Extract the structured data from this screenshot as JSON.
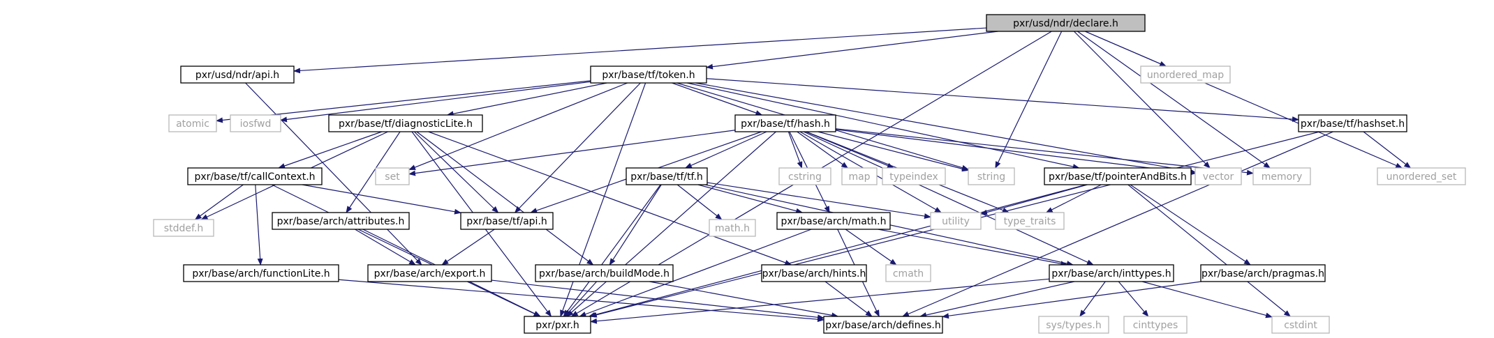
{
  "diagram": {
    "title": "pxr/usd/ndr/declare.h",
    "edge_color": "#191970",
    "root_fill": "#bfbfbf",
    "external_border": "#b8b8b8",
    "nodes": [
      {
        "id": "declare",
        "label": "pxr/usd/ndr/declare.h",
        "kind": "root"
      },
      {
        "id": "ndr_api",
        "label": "pxr/usd/ndr/api.h",
        "kind": "header"
      },
      {
        "id": "token",
        "label": "pxr/base/tf/token.h",
        "kind": "header"
      },
      {
        "id": "unordered_map",
        "label": "unordered_map",
        "kind": "system"
      },
      {
        "id": "atomic",
        "label": "atomic",
        "kind": "system"
      },
      {
        "id": "iosfwd",
        "label": "iosfwd",
        "kind": "system"
      },
      {
        "id": "diagLite",
        "label": "pxr/base/tf/diagnosticLite.h",
        "kind": "header"
      },
      {
        "id": "hash",
        "label": "pxr/base/tf/hash.h",
        "kind": "header"
      },
      {
        "id": "hashset",
        "label": "pxr/base/tf/hashset.h",
        "kind": "header"
      },
      {
        "id": "set",
        "label": "set",
        "kind": "system"
      },
      {
        "id": "callContext",
        "label": "pxr/base/tf/callContext.h",
        "kind": "header"
      },
      {
        "id": "tf_tf",
        "label": "pxr/base/tf/tf.h",
        "kind": "header"
      },
      {
        "id": "cstring",
        "label": "cstring",
        "kind": "system"
      },
      {
        "id": "map",
        "label": "map",
        "kind": "system"
      },
      {
        "id": "typeindex",
        "label": "typeindex",
        "kind": "system"
      },
      {
        "id": "string",
        "label": "string",
        "kind": "system"
      },
      {
        "id": "pab",
        "label": "pxr/base/tf/pointerAndBits.h",
        "kind": "header"
      },
      {
        "id": "vector",
        "label": "vector",
        "kind": "system"
      },
      {
        "id": "memory",
        "label": "memory",
        "kind": "system"
      },
      {
        "id": "unordered_set",
        "label": "unordered_set",
        "kind": "system"
      },
      {
        "id": "stddef",
        "label": "stddef.h",
        "kind": "system"
      },
      {
        "id": "attributes",
        "label": "pxr/base/arch/attributes.h",
        "kind": "header"
      },
      {
        "id": "tf_api",
        "label": "pxr/base/tf/api.h",
        "kind": "header"
      },
      {
        "id": "math_h",
        "label": "math.h",
        "kind": "system"
      },
      {
        "id": "arch_math",
        "label": "pxr/base/arch/math.h",
        "kind": "header"
      },
      {
        "id": "utility",
        "label": "utility",
        "kind": "system"
      },
      {
        "id": "type_traits",
        "label": "type_traits",
        "kind": "system"
      },
      {
        "id": "functionLite",
        "label": "pxr/base/arch/functionLite.h",
        "kind": "header"
      },
      {
        "id": "export",
        "label": "pxr/base/arch/export.h",
        "kind": "header"
      },
      {
        "id": "buildMode",
        "label": "pxr/base/arch/buildMode.h",
        "kind": "header"
      },
      {
        "id": "hints",
        "label": "pxr/base/arch/hints.h",
        "kind": "header"
      },
      {
        "id": "cmath",
        "label": "cmath",
        "kind": "system"
      },
      {
        "id": "inttypes",
        "label": "pxr/base/arch/inttypes.h",
        "kind": "header"
      },
      {
        "id": "pragmas",
        "label": "pxr/base/arch/pragmas.h",
        "kind": "header"
      },
      {
        "id": "pxr",
        "label": "pxr/pxr.h",
        "kind": "header"
      },
      {
        "id": "defines",
        "label": "pxr/base/arch/defines.h",
        "kind": "header"
      },
      {
        "id": "sys_types",
        "label": "sys/types.h",
        "kind": "system"
      },
      {
        "id": "cinttypes",
        "label": "cinttypes",
        "kind": "system"
      },
      {
        "id": "cstdint",
        "label": "cstdint",
        "kind": "system"
      }
    ],
    "edges": [
      [
        "declare",
        "ndr_api"
      ],
      [
        "declare",
        "token"
      ],
      [
        "declare",
        "unordered_map"
      ],
      [
        "declare",
        "string"
      ],
      [
        "declare",
        "vector"
      ],
      [
        "declare",
        "memory"
      ],
      [
        "declare",
        "unordered_set"
      ],
      [
        "declare",
        "pxr"
      ],
      [
        "ndr_api",
        "export"
      ],
      [
        "token",
        "atomic"
      ],
      [
        "token",
        "iosfwd"
      ],
      [
        "token",
        "diagLite"
      ],
      [
        "token",
        "hash"
      ],
      [
        "token",
        "hashset"
      ],
      [
        "token",
        "set"
      ],
      [
        "token",
        "string"
      ],
      [
        "token",
        "pab"
      ],
      [
        "token",
        "vector"
      ],
      [
        "token",
        "tf_api"
      ],
      [
        "token",
        "pxr"
      ],
      [
        "diagLite",
        "callContext"
      ],
      [
        "diagLite",
        "stddef"
      ],
      [
        "diagLite",
        "attributes"
      ],
      [
        "diagLite",
        "tf_api"
      ],
      [
        "diagLite",
        "buildMode"
      ],
      [
        "diagLite",
        "hints"
      ],
      [
        "diagLite",
        "pxr"
      ],
      [
        "hash",
        "set"
      ],
      [
        "hash",
        "tf_tf"
      ],
      [
        "hash",
        "cstring"
      ],
      [
        "hash",
        "map"
      ],
      [
        "hash",
        "typeindex"
      ],
      [
        "hash",
        "string"
      ],
      [
        "hash",
        "vector"
      ],
      [
        "hash",
        "memory"
      ],
      [
        "hash",
        "utility"
      ],
      [
        "hash",
        "type_traits"
      ],
      [
        "hash",
        "tf_api"
      ],
      [
        "hash",
        "arch_math"
      ],
      [
        "hash",
        "inttypes"
      ],
      [
        "hash",
        "pxr"
      ],
      [
        "hashset",
        "unordered_set"
      ],
      [
        "hashset",
        "pxr"
      ],
      [
        "hashset",
        "defines"
      ],
      [
        "callContext",
        "stddef"
      ],
      [
        "callContext",
        "tf_api"
      ],
      [
        "callContext",
        "functionLite"
      ],
      [
        "callContext",
        "pxr"
      ],
      [
        "tf_tf",
        "math_h"
      ],
      [
        "tf_tf",
        "utility"
      ],
      [
        "tf_tf",
        "arch_math"
      ],
      [
        "tf_tf",
        "buildMode"
      ],
      [
        "tf_tf",
        "inttypes"
      ],
      [
        "tf_tf",
        "pxr"
      ],
      [
        "pab",
        "utility"
      ],
      [
        "pab",
        "type_traits"
      ],
      [
        "pab",
        "pragmas"
      ],
      [
        "pab",
        "cstdint"
      ],
      [
        "pab",
        "pxr"
      ],
      [
        "attributes",
        "export"
      ],
      [
        "attributes",
        "pxr"
      ],
      [
        "tf_api",
        "export"
      ],
      [
        "arch_math",
        "cmath"
      ],
      [
        "arch_math",
        "inttypes"
      ],
      [
        "arch_math",
        "defines"
      ],
      [
        "arch_math",
        "pxr"
      ],
      [
        "functionLite",
        "defines"
      ],
      [
        "export",
        "defines"
      ],
      [
        "buildMode",
        "pxr"
      ],
      [
        "buildMode",
        "defines"
      ],
      [
        "hints",
        "defines"
      ],
      [
        "inttypes",
        "sys_types"
      ],
      [
        "inttypes",
        "cinttypes"
      ],
      [
        "inttypes",
        "cstdint"
      ],
      [
        "inttypes",
        "defines"
      ],
      [
        "inttypes",
        "pxr"
      ],
      [
        "pragmas",
        "defines"
      ]
    ]
  }
}
